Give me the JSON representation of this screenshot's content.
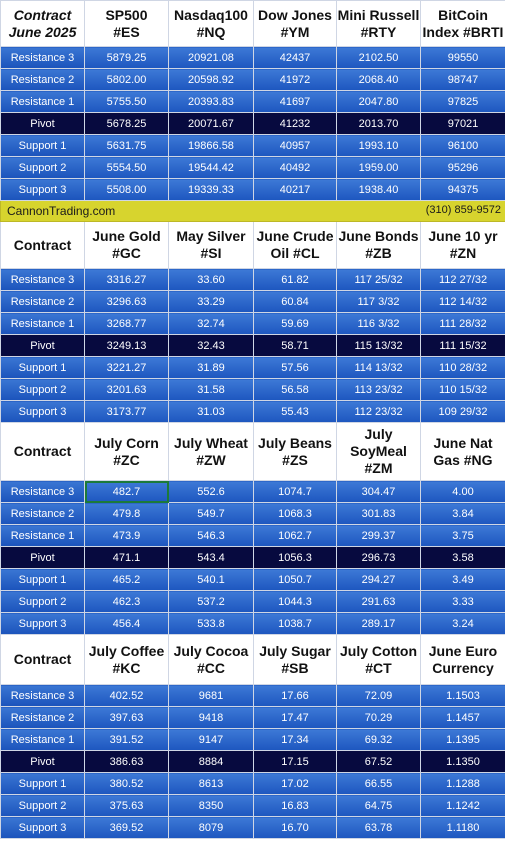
{
  "banner": {
    "site": "CannonTrading.com",
    "phone": "(310) 859-9572"
  },
  "sections": [
    {
      "contract_label": [
        "Contract",
        "June 2025"
      ],
      "columns": [
        [
          "SP500",
          "#ES"
        ],
        [
          "Nasdaq100",
          "#NQ"
        ],
        [
          "Dow Jones",
          "#YM"
        ],
        [
          "Mini Russell",
          "#RTY"
        ],
        [
          "BitCoin",
          "Index #BRTI"
        ]
      ],
      "rows": [
        {
          "label": "Resistance 3",
          "values": [
            "5879.25",
            "20921.08",
            "42437",
            "2102.50",
            "99550"
          ]
        },
        {
          "label": "Resistance 2",
          "values": [
            "5802.00",
            "20598.92",
            "41972",
            "2068.40",
            "98747"
          ]
        },
        {
          "label": "Resistance 1",
          "values": [
            "5755.50",
            "20393.83",
            "41697",
            "2047.80",
            "97825"
          ]
        },
        {
          "label": "Pivot",
          "values": [
            "5678.25",
            "20071.67",
            "41232",
            "2013.70",
            "97021"
          ]
        },
        {
          "label": "Support 1",
          "values": [
            "5631.75",
            "19866.58",
            "40957",
            "1993.10",
            "96100"
          ]
        },
        {
          "label": "Support 2",
          "values": [
            "5554.50",
            "19544.42",
            "40492",
            "1959.00",
            "95296"
          ]
        },
        {
          "label": "Support 3",
          "values": [
            "5508.00",
            "19339.33",
            "40217",
            "1938.40",
            "94375"
          ]
        }
      ]
    },
    {
      "contract_label": [
        "Contract"
      ],
      "columns": [
        [
          "June Gold",
          "#GC"
        ],
        [
          "May Silver",
          "#SI"
        ],
        [
          "June Crude",
          "Oil #CL"
        ],
        [
          "June Bonds",
          "#ZB"
        ],
        [
          "June 10 yr",
          "#ZN"
        ]
      ],
      "rows": [
        {
          "label": "Resistance 3",
          "values": [
            "3316.27",
            "33.60",
            "61.82",
            "117 25/32",
            "112 27/32"
          ]
        },
        {
          "label": "Resistance 2",
          "values": [
            "3296.63",
            "33.29",
            "60.84",
            "117  3/32",
            "112 14/32"
          ]
        },
        {
          "label": "Resistance 1",
          "values": [
            "3268.77",
            "32.74",
            "59.69",
            "116  3/32",
            "111 28/32"
          ]
        },
        {
          "label": "Pivot",
          "values": [
            "3249.13",
            "32.43",
            "58.71",
            "115 13/32",
            "111 15/32"
          ]
        },
        {
          "label": "Support 1",
          "values": [
            "3221.27",
            "31.89",
            "57.56",
            "114 13/32",
            "110 28/32"
          ]
        },
        {
          "label": "Support 2",
          "values": [
            "3201.63",
            "31.58",
            "56.58",
            "113 23/32",
            "110 15/32"
          ]
        },
        {
          "label": "Support 3",
          "values": [
            "3173.77",
            "31.03",
            "55.43",
            "112 23/32",
            "109 29/32"
          ]
        }
      ]
    },
    {
      "contract_label": [
        "Contract"
      ],
      "columns": [
        [
          "July Corn",
          "#ZC"
        ],
        [
          "July  Wheat",
          "#ZW"
        ],
        [
          "July Beans",
          "#ZS"
        ],
        [
          "July",
          "SoyMeal",
          "#ZM"
        ],
        [
          "June Nat",
          "Gas #NG"
        ]
      ],
      "rows": [
        {
          "label": "Resistance 3",
          "values": [
            "482.7",
            "552.6",
            "1074.7",
            "304.47",
            "4.00"
          ]
        },
        {
          "label": "Resistance 2",
          "values": [
            "479.8",
            "549.7",
            "1068.3",
            "301.83",
            "3.84"
          ]
        },
        {
          "label": "Resistance 1",
          "values": [
            "473.9",
            "546.3",
            "1062.7",
            "299.37",
            "3.75"
          ]
        },
        {
          "label": "Pivot",
          "values": [
            "471.1",
            "543.4",
            "1056.3",
            "296.73",
            "3.58"
          ]
        },
        {
          "label": "Support 1",
          "values": [
            "465.2",
            "540.1",
            "1050.7",
            "294.27",
            "3.49"
          ]
        },
        {
          "label": "Support 2",
          "values": [
            "462.3",
            "537.2",
            "1044.3",
            "291.63",
            "3.33"
          ]
        },
        {
          "label": "Support 3",
          "values": [
            "456.4",
            "533.8",
            "1038.7",
            "289.17",
            "3.24"
          ]
        }
      ]
    },
    {
      "contract_label": [
        "Contract"
      ],
      "columns": [
        [
          "July Coffee",
          "#KC"
        ],
        [
          "July Cocoa",
          "#CC"
        ],
        [
          "July Sugar",
          "#SB"
        ],
        [
          "July Cotton",
          "#CT"
        ],
        [
          "June Euro",
          "Currency"
        ]
      ],
      "rows": [
        {
          "label": "Resistance 3",
          "values": [
            "402.52",
            "9681",
            "17.66",
            "72.09",
            "1.1503"
          ]
        },
        {
          "label": "Resistance 2",
          "values": [
            "397.63",
            "9418",
            "17.47",
            "70.29",
            "1.1457"
          ]
        },
        {
          "label": "Resistance 1",
          "values": [
            "391.52",
            "9147",
            "17.34",
            "69.32",
            "1.1395"
          ]
        },
        {
          "label": "Pivot",
          "values": [
            "386.63",
            "8884",
            "17.15",
            "67.52",
            "1.1350"
          ]
        },
        {
          "label": "Support 1",
          "values": [
            "380.52",
            "8613",
            "17.02",
            "66.55",
            "1.1288"
          ]
        },
        {
          "label": "Support 2",
          "values": [
            "375.63",
            "8350",
            "16.83",
            "64.75",
            "1.1242"
          ]
        },
        {
          "label": "Support 3",
          "values": [
            "369.52",
            "8079",
            "16.70",
            "63.78",
            "1.1180"
          ]
        }
      ]
    }
  ],
  "selected_cell": {
    "section": 2,
    "row": 0,
    "column": 0
  },
  "colors": {
    "row_blue": "#2a66cc",
    "pivot_navy": "#070a3f",
    "banner_yellow": "#d7d42e",
    "selection_green": "#1c7a3a"
  }
}
